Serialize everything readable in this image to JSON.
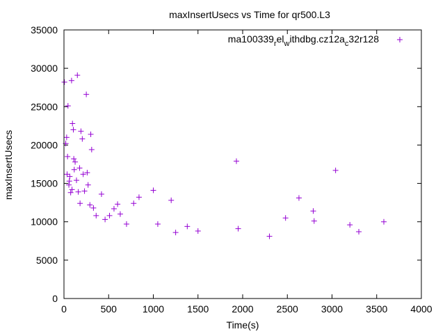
{
  "chart_data": {
    "type": "scatter",
    "title": "maxInsertUsecs vs Time for qr500.L3",
    "xlabel": "Time(s)",
    "ylabel": "maxInsertUsecs",
    "xlim": [
      0,
      4000
    ],
    "ylim": [
      0,
      35000
    ],
    "x_ticks": [
      0,
      500,
      1000,
      1500,
      2000,
      2500,
      3000,
      3500,
      4000
    ],
    "y_ticks": [
      0,
      5000,
      10000,
      15000,
      20000,
      25000,
      30000,
      35000
    ],
    "grid": false,
    "legend": "top-right",
    "legend_label": {
      "base": "ma100339",
      "sub1": "r",
      "mid1": "el",
      "sub2": "w",
      "mid2": "ithdbg.cz12a",
      "sub3": "c",
      "end": "32r128"
    },
    "marker": "+",
    "color": "#9400d3",
    "series": [
      {
        "points": [
          [
            5,
            28200
          ],
          [
            30,
            21000
          ],
          [
            35,
            16200
          ],
          [
            45,
            25100
          ],
          [
            60,
            15300
          ],
          [
            75,
            13800
          ],
          [
            85,
            28400
          ],
          [
            95,
            22800
          ],
          [
            105,
            22000
          ],
          [
            110,
            18200
          ],
          [
            125,
            17800
          ],
          [
            150,
            29100
          ],
          [
            175,
            17000
          ],
          [
            190,
            21800
          ],
          [
            205,
            20800
          ],
          [
            215,
            16200
          ],
          [
            250,
            26600
          ],
          [
            260,
            16400
          ],
          [
            300,
            21400
          ],
          [
            310,
            19400
          ],
          [
            20,
            20200
          ],
          [
            40,
            18500
          ],
          [
            55,
            14800
          ],
          [
            65,
            15900
          ],
          [
            90,
            14200
          ],
          [
            115,
            16800
          ],
          [
            140,
            15400
          ],
          [
            160,
            13900
          ],
          [
            180,
            12400
          ],
          [
            230,
            14000
          ],
          [
            270,
            14800
          ],
          [
            290,
            12200
          ],
          [
            330,
            11800
          ],
          [
            360,
            10800
          ],
          [
            420,
            13600
          ],
          [
            460,
            10300
          ],
          [
            510,
            10800
          ],
          [
            560,
            11700
          ],
          [
            600,
            12300
          ],
          [
            630,
            11000
          ],
          [
            700,
            9700
          ],
          [
            780,
            12400
          ],
          [
            840,
            13200
          ],
          [
            1000,
            14100
          ],
          [
            1050,
            9700
          ],
          [
            1200,
            12800
          ],
          [
            1250,
            8600
          ],
          [
            1380,
            9400
          ],
          [
            1500,
            8800
          ],
          [
            1930,
            17900
          ],
          [
            1950,
            9100
          ],
          [
            2300,
            8100
          ],
          [
            2480,
            10500
          ],
          [
            2630,
            13100
          ],
          [
            2790,
            11400
          ],
          [
            2800,
            10100
          ],
          [
            3040,
            16700
          ],
          [
            3200,
            9600
          ],
          [
            3300,
            8700
          ],
          [
            3580,
            10000
          ]
        ]
      }
    ]
  }
}
